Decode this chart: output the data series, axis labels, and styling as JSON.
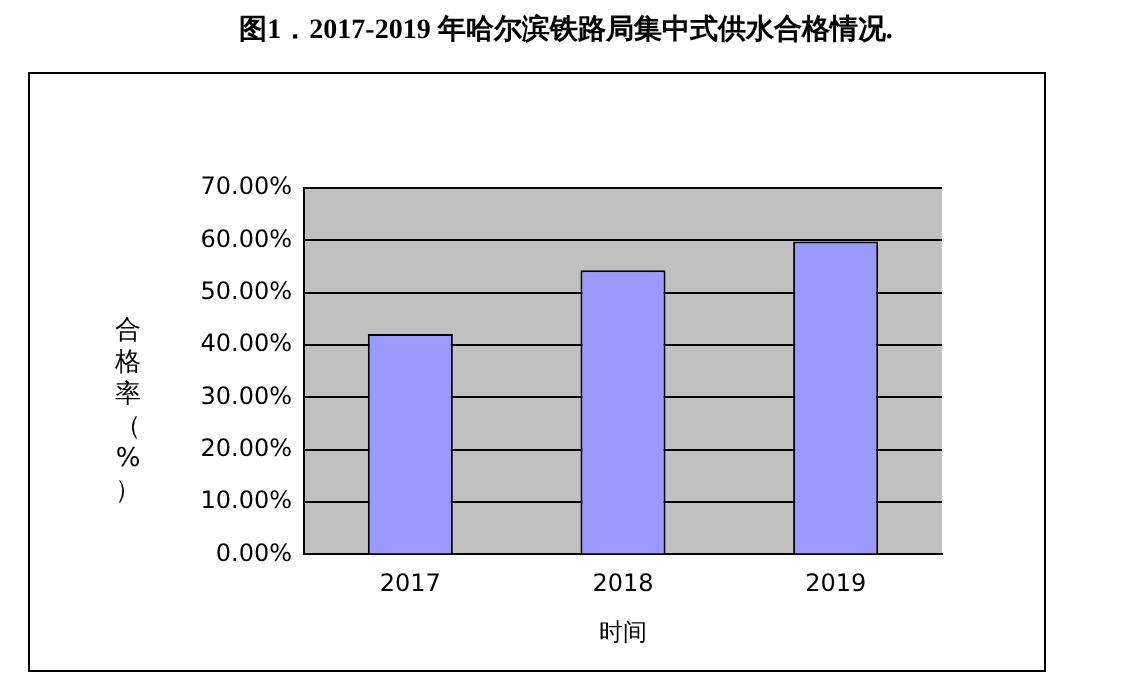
{
  "chart_data": {
    "type": "bar",
    "title": "图1．2017-2019 年哈尔滨铁路局集中式供水合格情况.",
    "xlabel": "时间",
    "ylabel": "合格率（%）",
    "categories": [
      "2017",
      "2018",
      "2019"
    ],
    "series": [
      {
        "color": "#9999ff",
        "values": [
          42.1,
          54.3,
          59.8
        ]
      }
    ],
    "ylim": [
      0,
      70
    ],
    "yticks": [
      {
        "value": 0,
        "label": "0.00%"
      },
      {
        "value": 10,
        "label": "10.00%"
      },
      {
        "value": 20,
        "label": "20.00%"
      },
      {
        "value": 30,
        "label": "30.00%"
      },
      {
        "value": 40,
        "label": "40.00%"
      },
      {
        "value": 50,
        "label": "50.00%"
      },
      {
        "value": 60,
        "label": "60.00%"
      },
      {
        "value": 70,
        "label": "70.00%"
      }
    ],
    "grid": "y",
    "legend": false
  }
}
